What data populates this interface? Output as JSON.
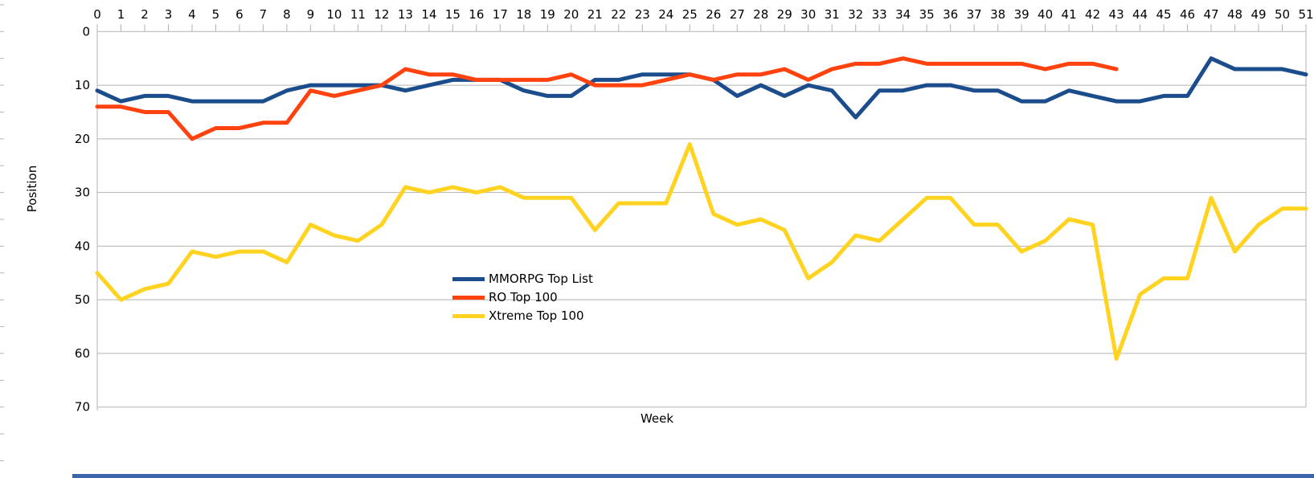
{
  "chart_data": {
    "type": "line",
    "title": "",
    "xlabel": "Week",
    "ylabel": "Position",
    "x_axis_position": "top",
    "y_axis_inverted": true,
    "ylim": [
      0,
      70
    ],
    "y_ticks": [
      0,
      10,
      20,
      30,
      40,
      50,
      60,
      70
    ],
    "x": [
      0,
      1,
      2,
      3,
      4,
      5,
      6,
      7,
      8,
      9,
      10,
      11,
      12,
      13,
      14,
      15,
      16,
      17,
      18,
      19,
      20,
      21,
      22,
      23,
      24,
      25,
      26,
      27,
      28,
      29,
      30,
      31,
      32,
      33,
      34,
      35,
      36,
      37,
      38,
      39,
      40,
      41,
      42,
      43,
      44,
      45,
      46,
      47,
      48,
      49,
      50,
      51
    ],
    "grid": true,
    "legend_position": "overlay-center-left",
    "series": [
      {
        "name": "MMORPG Top List",
        "color": "#1B4D8D",
        "values": [
          11,
          13,
          12,
          12,
          13,
          13,
          13,
          13,
          11,
          10,
          10,
          10,
          10,
          11,
          10,
          9,
          9,
          9,
          11,
          12,
          12,
          9,
          9,
          8,
          8,
          8,
          9,
          12,
          10,
          12,
          10,
          11,
          16,
          11,
          11,
          10,
          10,
          11,
          11,
          13,
          13,
          11,
          12,
          13,
          13,
          12,
          12,
          5,
          7,
          7,
          7,
          8
        ]
      },
      {
        "name": "RO Top 100",
        "color": "#FF420E",
        "values": [
          14,
          14,
          15,
          15,
          20,
          18,
          18,
          17,
          17,
          11,
          12,
          11,
          10,
          7,
          8,
          8,
          9,
          9,
          9,
          9,
          8,
          10,
          10,
          10,
          9,
          8,
          9,
          8,
          8,
          7,
          9,
          7,
          6,
          6,
          5,
          6,
          6,
          6,
          6,
          6,
          7,
          6,
          6,
          7
        ]
      },
      {
        "name": "Xtreme Top 100",
        "color": "#FFD320",
        "values": [
          45,
          50,
          48,
          47,
          41,
          42,
          41,
          41,
          43,
          36,
          38,
          39,
          36,
          29,
          30,
          29,
          30,
          29,
          31,
          31,
          31,
          37,
          32,
          32,
          32,
          21,
          34,
          36,
          35,
          37,
          46,
          43,
          38,
          39,
          35,
          31,
          31,
          36,
          36,
          41,
          39,
          35,
          36,
          61,
          49,
          46,
          46,
          31,
          41,
          36,
          33,
          33
        ]
      }
    ]
  },
  "decor": {
    "grid_color": "#b3b3b3",
    "bottom_bar_color": "#3A65A8"
  }
}
